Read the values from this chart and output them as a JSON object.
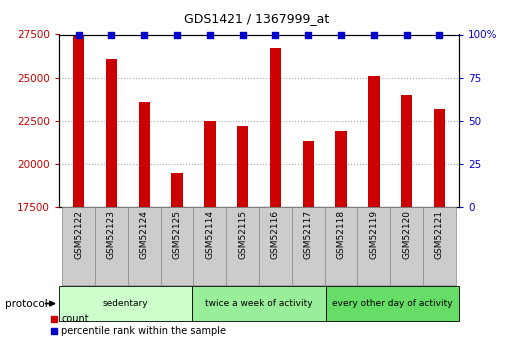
{
  "title": "GDS1421 / 1367999_at",
  "categories": [
    "GSM52122",
    "GSM52123",
    "GSM52124",
    "GSM52125",
    "GSM52114",
    "GSM52115",
    "GSM52116",
    "GSM52117",
    "GSM52118",
    "GSM52119",
    "GSM52120",
    "GSM52121"
  ],
  "counts": [
    27400,
    26100,
    23600,
    19500,
    22500,
    22200,
    26700,
    21300,
    21900,
    25100,
    24000,
    23200
  ],
  "percentile_ranks": [
    100,
    100,
    100,
    100,
    100,
    100,
    100,
    100,
    100,
    100,
    100,
    100
  ],
  "ylim_left": [
    17500,
    27500
  ],
  "ylim_right": [
    0,
    100
  ],
  "yticks_left": [
    17500,
    20000,
    22500,
    25000,
    27500
  ],
  "yticks_right": [
    0,
    25,
    50,
    75,
    100
  ],
  "bar_color": "#cc0000",
  "dot_color": "#0000cc",
  "groups": [
    {
      "label": "sedentary",
      "start": 0,
      "end": 4,
      "color": "#ccffcc"
    },
    {
      "label": "twice a week of activity",
      "start": 4,
      "end": 8,
      "color": "#99ee99"
    },
    {
      "label": "every other day of activity",
      "start": 8,
      "end": 12,
      "color": "#66dd66"
    }
  ],
  "protocol_label": "protocol",
  "legend_count_label": "count",
  "legend_percentile_label": "percentile rank within the sample",
  "bar_color_red": "#cc0000",
  "dot_color_blue": "#0000cc",
  "grid_color": "#aaaaaa",
  "cell_color": "#cccccc",
  "cell_edge_color": "#888888"
}
